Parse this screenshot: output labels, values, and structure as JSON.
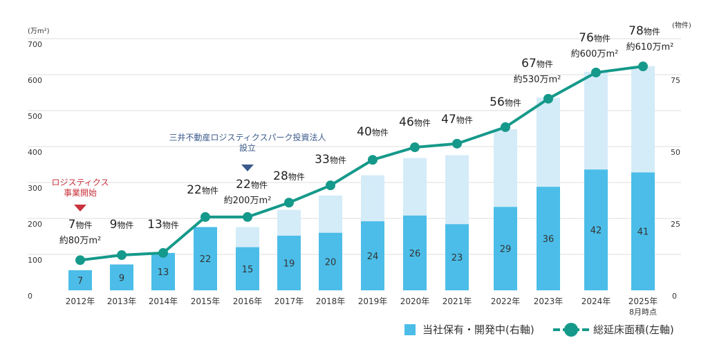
{
  "chart_data": {
    "type": "bar+line",
    "left_axis": {
      "unit": "(万m²)",
      "ticks": [
        "0",
        "100",
        "200",
        "300",
        "400",
        "500",
        "600",
        "700"
      ],
      "range": [
        0,
        700
      ]
    },
    "right_axis": {
      "unit": "(物件)",
      "ticks": [
        "0",
        "25",
        "50",
        "75"
      ],
      "range": [
        0,
        87.5
      ]
    },
    "categories": [
      "2012年",
      "2013年",
      "2014年",
      "2015年",
      "2016年",
      "2017年",
      "2018年",
      "2019年",
      "2020年",
      "2021年",
      "2022年",
      "2023年",
      "2024年",
      "2025年"
    ],
    "category_sublabels": {
      "2025年": "8月時点"
    },
    "series": [
      {
        "name": "当社保有・開発中(右軸)",
        "type": "bar",
        "axis": "right",
        "color": "#4bbde8",
        "values": [
          7,
          9,
          13,
          22,
          15,
          19,
          20,
          24,
          26,
          23,
          29,
          36,
          42,
          41
        ]
      },
      {
        "type": "bar",
        "axis": "right",
        "color": "#d4ecf8",
        "note_total_properties": true,
        "values": [
          7,
          9,
          13,
          22,
          22,
          28,
          33,
          40,
          46,
          47,
          56,
          67,
          76,
          78
        ]
      },
      {
        "name": "総延床面積(左軸)",
        "type": "line",
        "axis": "left",
        "color": "#15998a",
        "values": [
          84,
          98,
          104,
          204,
          204,
          244,
          292,
          363,
          398,
          408,
          454,
          533,
          606,
          623
        ]
      }
    ],
    "count_labels": [
      "7",
      "9",
      "13",
      "22",
      "22",
      "28",
      "33",
      "40",
      "46",
      "47",
      "56",
      "67",
      "76",
      "78"
    ],
    "count_suffix": "物件",
    "area_labels": {
      "0": "約80万m²",
      "4": "約200万m²",
      "11": "約530万m²",
      "12": "約600万m²",
      "13": "約610万m²"
    },
    "annotations": [
      {
        "category": "2012年",
        "lines": [
          "ロジスティクス",
          "事業開始"
        ],
        "color": "#c8323c"
      },
      {
        "category": "2016年",
        "lines": [
          "三井不動産ロジスティクスパーク投資法人",
          "設立"
        ],
        "color": "#3a5a8c"
      }
    ],
    "grid": true,
    "legend": "bottom-right"
  },
  "legend": {
    "bar_label": "当社保有・開発中(右軸)",
    "line_label": "総延床面積(左軸)"
  }
}
